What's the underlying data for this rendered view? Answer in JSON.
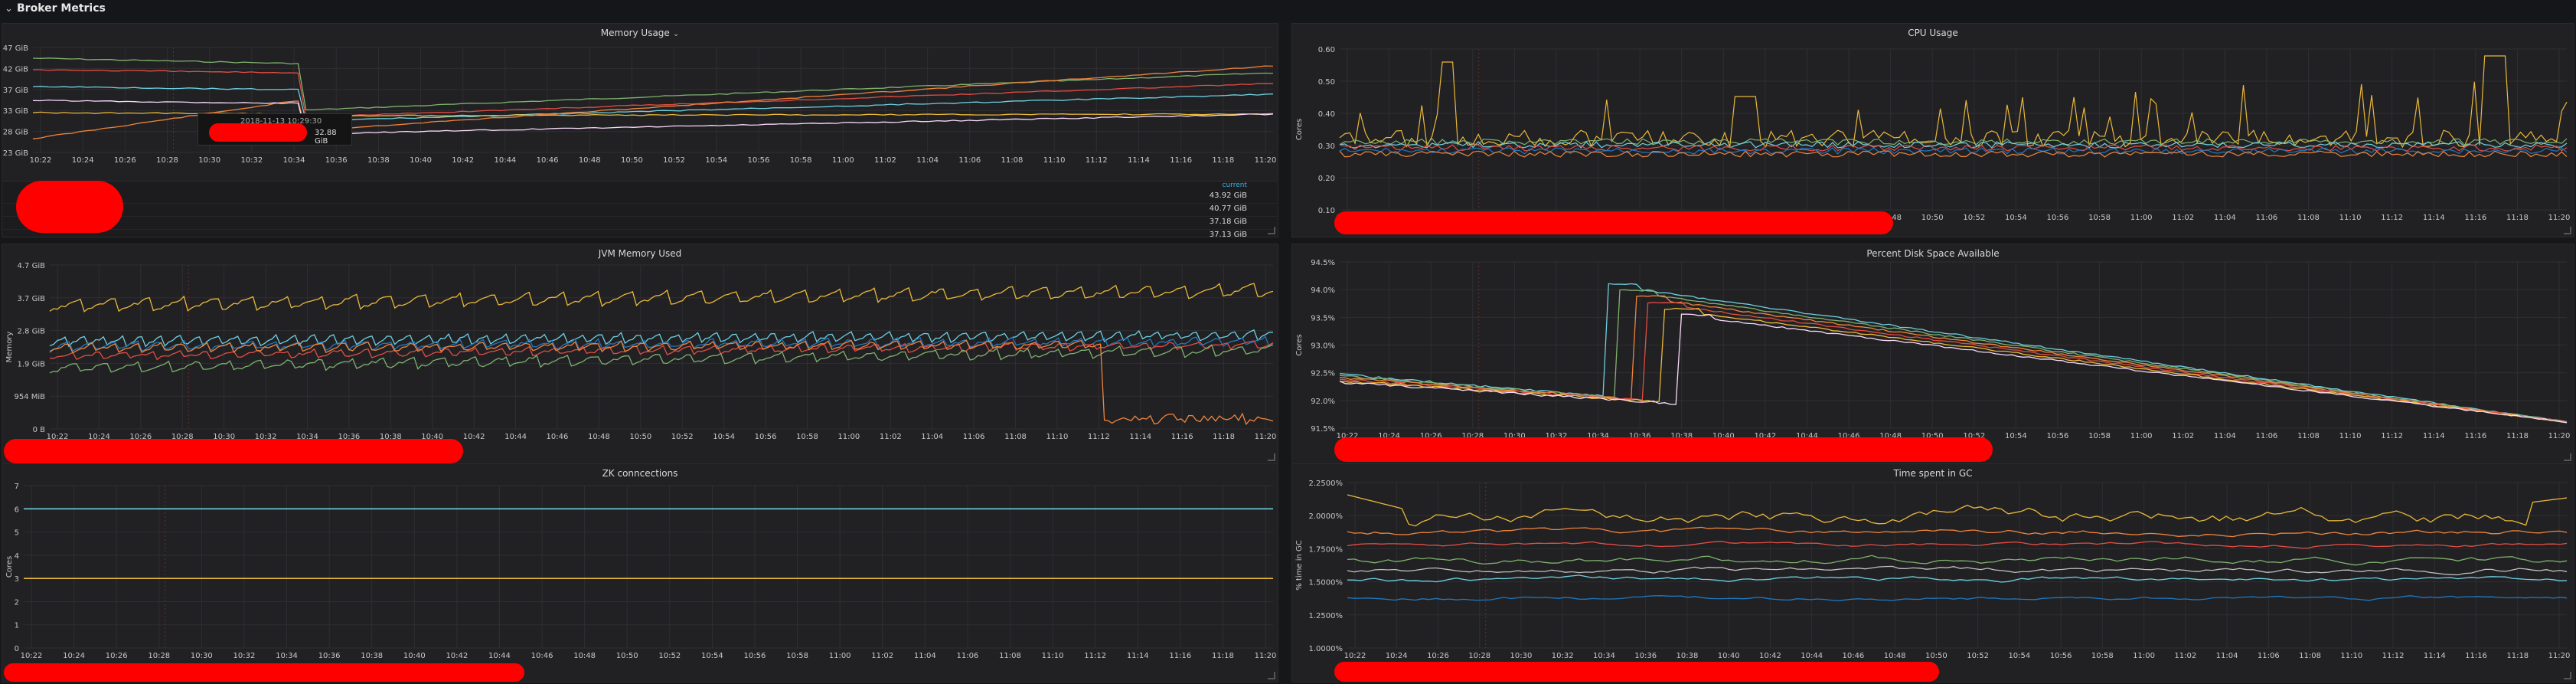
{
  "row": {
    "title": "Broker Metrics"
  },
  "time_ticks": [
    "10:22",
    "10:24",
    "10:26",
    "10:28",
    "10:30",
    "10:32",
    "10:34",
    "10:36",
    "10:38",
    "10:40",
    "10:42",
    "10:44",
    "10:46",
    "10:48",
    "10:50",
    "10:52",
    "10:54",
    "10:56",
    "10:58",
    "11:00",
    "11:02",
    "11:04",
    "11:06",
    "11:08",
    "11:10",
    "11:12",
    "11:14",
    "11:16",
    "11:18",
    "11:20"
  ],
  "panels": {
    "memory": {
      "title": "Memory Usage",
      "yticks": [
        "47 GiB",
        "42 GiB",
        "37 GiB",
        "33 GiB",
        "28 GiB",
        "23 GiB"
      ],
      "legend_header": "current",
      "legend_values": [
        "43.92 GiB",
        "40.77 GiB",
        "37.18 GiB",
        "37.13 GiB"
      ],
      "tooltip": {
        "time": "2018-11-13 10:29:30",
        "value": "32.88 GiB"
      }
    },
    "cpu": {
      "title": "CPU Usage",
      "ylabel": "Cores",
      "yticks": [
        "0.60",
        "0.50",
        "0.40",
        "0.30",
        "0.20",
        "0.10"
      ]
    },
    "jvm": {
      "title": "JVM Memory Used",
      "ylabel": "Memory",
      "yticks": [
        "4.7 GiB",
        "3.7 GiB",
        "2.8 GiB",
        "1.9 GiB",
        "954 MiB",
        "0 B"
      ]
    },
    "disk": {
      "title": "Percent Disk Space Available",
      "ylabel": "Cores",
      "yticks": [
        "94.5%",
        "94.0%",
        "93.5%",
        "93.0%",
        "92.5%",
        "92.0%",
        "91.5%"
      ]
    },
    "zk": {
      "title": "ZK conncections",
      "ylabel": "Cores",
      "yticks": [
        "7",
        "6",
        "5",
        "4",
        "3",
        "2",
        "1",
        "0"
      ]
    },
    "gc": {
      "title": "Time spent in GC",
      "ylabel": "% time in GC",
      "yticks": [
        "2.2500%",
        "2.0000%",
        "1.7500%",
        "1.5000%",
        "1.2500%",
        "1.0000%"
      ]
    }
  },
  "colors": {
    "green": "#7eb26d",
    "yellow": "#eab839",
    "cyan": "#6ed0e0",
    "orange": "#ef843c",
    "red": "#e24d42",
    "blue": "#1f78c1",
    "purple": "#ba43a9",
    "grid": "#2f2f32",
    "redact": "#ff0000"
  }
}
